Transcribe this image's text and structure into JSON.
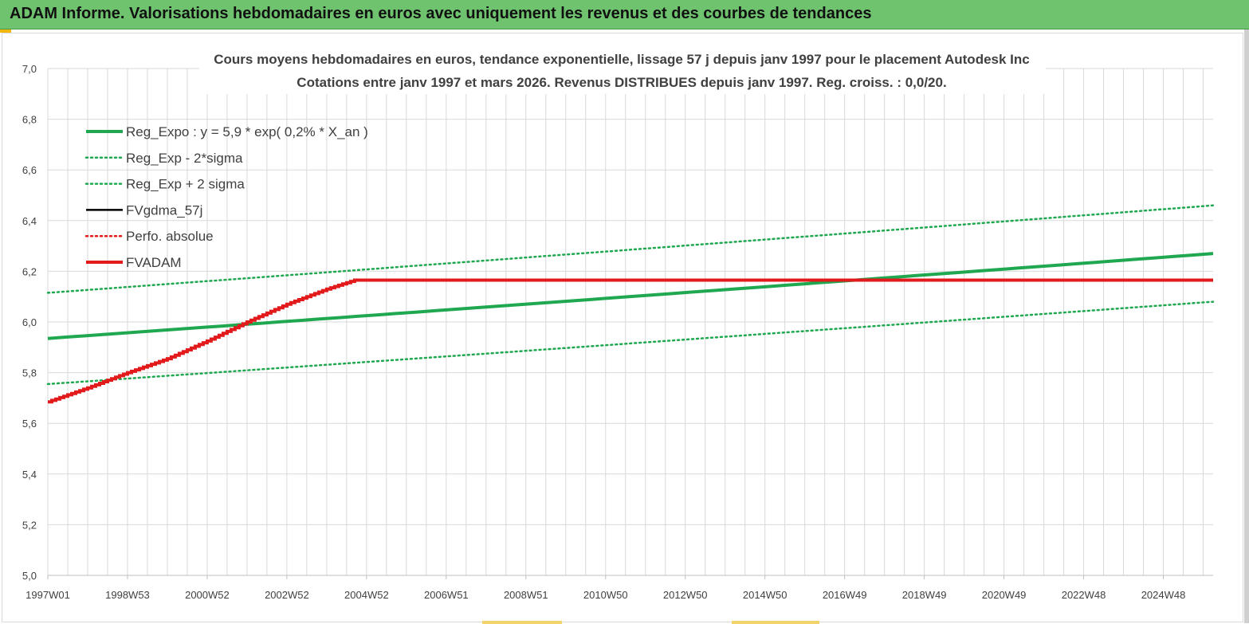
{
  "header": {
    "title": "ADAM Informe. Valorisations hebdomadaires en euros avec uniquement les revenus et des courbes de tendances"
  },
  "chart_data": {
    "type": "line",
    "title": "Cours moyens hebdomadaires en euros, tendance exponentielle, lissage 57 j depuis janv 1997 pour le placement Autodesk Inc",
    "subtitle": "Cotations entre janv 1997 et mars 2026. Revenus DISTRIBUES depuis janv 1997. Reg. croiss. : 0,0/20.",
    "xlabel": "",
    "ylabel": "",
    "ylim": [
      5.0,
      7.0
    ],
    "yticks": [
      "5,0",
      "5,2",
      "5,4",
      "5,6",
      "5,8",
      "6,0",
      "6,2",
      "6,4",
      "6,6",
      "6,8",
      "7,0"
    ],
    "xlim": [
      1997.0,
      2026.25
    ],
    "xticks": [
      {
        "label": "1997W01",
        "x": 1997.0
      },
      {
        "label": "1998W53",
        "x": 1999.0
      },
      {
        "label": "2000W52",
        "x": 2001.0
      },
      {
        "label": "2002W52",
        "x": 2003.0
      },
      {
        "label": "2004W52",
        "x": 2005.0
      },
      {
        "label": "2006W51",
        "x": 2007.0
      },
      {
        "label": "2008W51",
        "x": 2009.0
      },
      {
        "label": "2010W50",
        "x": 2011.0
      },
      {
        "label": "2012W50",
        "x": 2013.0
      },
      {
        "label": "2014W50",
        "x": 2015.0
      },
      {
        "label": "2016W49",
        "x": 2017.0
      },
      {
        "label": "2018W49",
        "x": 2019.0
      },
      {
        "label": "2020W49",
        "x": 2021.0
      },
      {
        "label": "2022W48",
        "x": 2023.0
      },
      {
        "label": "2024W48",
        "x": 2025.0
      }
    ],
    "grid": true,
    "legend_position": "top-left",
    "series": [
      {
        "name": "Reg_Expo : y = 5,9 * exp( 0,2% *  X_an )",
        "style": "solid-thick",
        "color": "#1fa84f",
        "x": [
          1997.0,
          2026.25
        ],
        "y": [
          5.935,
          6.27
        ]
      },
      {
        "name": "Reg_Exp - 2*sigma",
        "style": "dotted",
        "color": "#1fa84f",
        "x": [
          1997.0,
          2026.25
        ],
        "y": [
          5.755,
          6.08
        ]
      },
      {
        "name": "Reg_Exp + 2 sigma",
        "style": "dotted",
        "color": "#1fa84f",
        "x": [
          1997.0,
          2026.25
        ],
        "y": [
          6.115,
          6.46
        ]
      },
      {
        "name": "FVgdma_57j",
        "style": "solid",
        "color": "#000000",
        "x": [],
        "y": []
      },
      {
        "name": "Perfo. absolue",
        "style": "dotted",
        "color": "#e31a1c",
        "x": [],
        "y": []
      },
      {
        "name": "FVADAM",
        "style": "solid-thick-step",
        "color": "#e31a1c",
        "x": [
          1997.0,
          1998.0,
          1999.0,
          2000.0,
          2001.0,
          2002.0,
          2003.0,
          2004.0,
          2004.7,
          2005.0,
          2010.0,
          2015.0,
          2020.0,
          2026.25
        ],
        "y": [
          5.685,
          5.74,
          5.8,
          5.855,
          5.925,
          6.0,
          6.07,
          6.13,
          6.165,
          6.165,
          6.165,
          6.165,
          6.165,
          6.165
        ]
      }
    ]
  }
}
